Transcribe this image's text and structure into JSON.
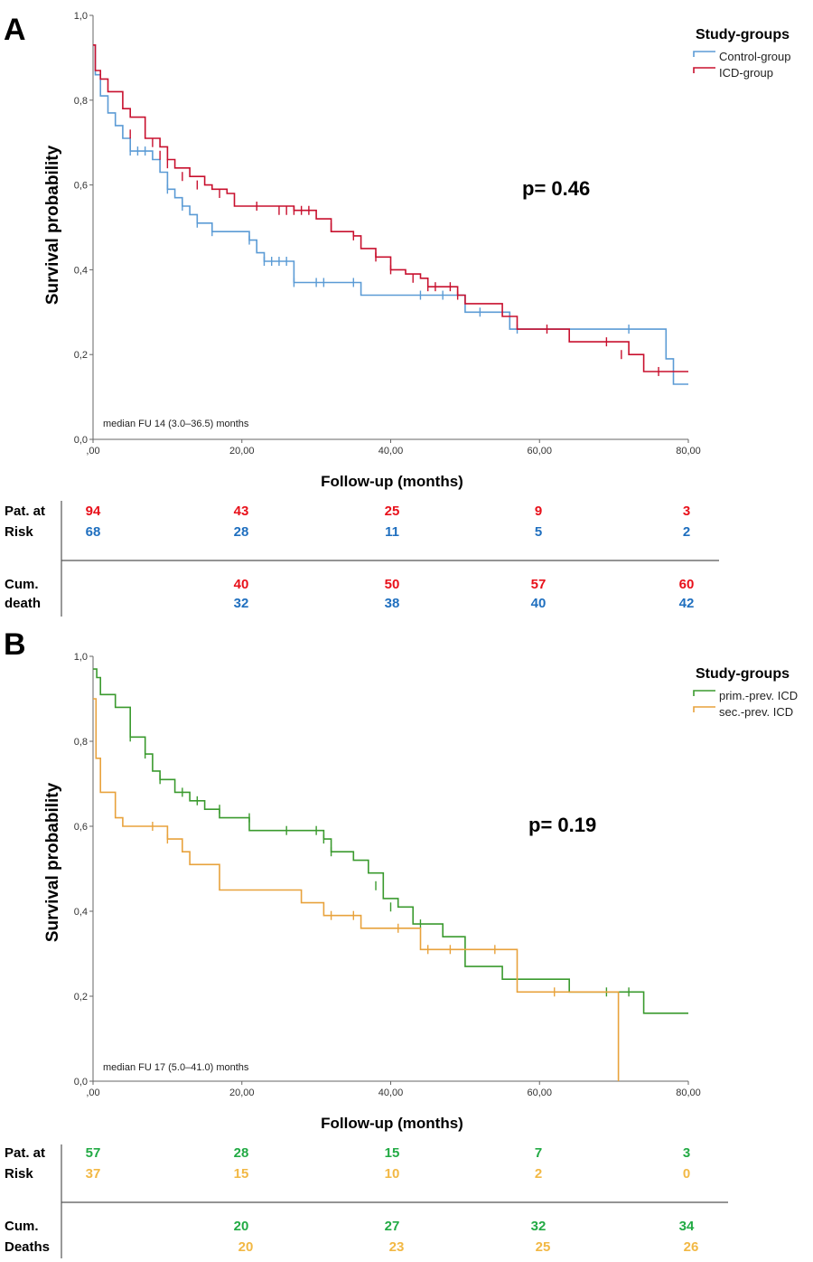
{
  "chart_data": [
    {
      "type": "line",
      "panel": "A",
      "step": true,
      "xlabel": "Follow-up (months)",
      "ylabel": "Survival probability",
      "xlim": [
        0,
        80
      ],
      "ylim": [
        0,
        1
      ],
      "xticks": [
        ",00",
        "20,00",
        "40,00",
        "60,00",
        "80,00"
      ],
      "yticks": [
        "0,0",
        "0,2",
        "0,4",
        "0,6",
        "0,8",
        "1,0"
      ],
      "legend_title": "Study-groups",
      "pvalue": "p= 0.46",
      "annotation": "median FU 14 (3.0–36.5) months",
      "series": [
        {
          "name": "Control-group",
          "color": "#5b9bd5",
          "x": [
            0,
            0.3,
            1,
            2,
            3,
            4,
            5,
            6,
            7,
            8,
            9,
            10,
            11,
            12,
            13,
            14,
            16,
            21,
            22,
            23,
            27,
            36,
            48,
            50,
            56,
            77,
            78,
            80
          ],
          "y": [
            0.93,
            0.86,
            0.81,
            0.77,
            0.74,
            0.71,
            0.68,
            0.68,
            0.68,
            0.66,
            0.63,
            0.59,
            0.57,
            0.55,
            0.53,
            0.51,
            0.49,
            0.47,
            0.44,
            0.42,
            0.37,
            0.34,
            0.34,
            0.3,
            0.26,
            0.19,
            0.13,
            0.13
          ],
          "censor_x": [
            5,
            6,
            7,
            10,
            12,
            14,
            16,
            21,
            23,
            24,
            25,
            26,
            27,
            30,
            31,
            35,
            44,
            47,
            52,
            57,
            72
          ],
          "censor_y": [
            0.68,
            0.68,
            0.68,
            0.59,
            0.55,
            0.51,
            0.49,
            0.47,
            0.42,
            0.42,
            0.42,
            0.42,
            0.37,
            0.37,
            0.37,
            0.37,
            0.34,
            0.34,
            0.3,
            0.26,
            0.26
          ]
        },
        {
          "name": "ICD-group",
          "color": "#c8102e",
          "x": [
            0,
            0.3,
            1,
            2,
            4,
            5,
            7,
            9,
            10,
            11,
            13,
            15,
            16,
            18,
            19,
            23,
            27,
            30,
            32,
            35,
            36,
            38,
            40,
            42,
            44,
            45,
            49,
            50,
            55,
            57,
            61,
            64,
            70,
            72,
            74,
            80
          ],
          "y": [
            0.93,
            0.87,
            0.85,
            0.82,
            0.78,
            0.76,
            0.71,
            0.69,
            0.66,
            0.64,
            0.62,
            0.6,
            0.59,
            0.58,
            0.55,
            0.55,
            0.54,
            0.52,
            0.49,
            0.48,
            0.45,
            0.43,
            0.4,
            0.39,
            0.38,
            0.36,
            0.34,
            0.32,
            0.29,
            0.26,
            0.26,
            0.23,
            0.23,
            0.2,
            0.16,
            0.16
          ],
          "censor_x": [
            5,
            8,
            9,
            10,
            12,
            14,
            17,
            22,
            25,
            26,
            27,
            28,
            29,
            32,
            35,
            38,
            40,
            43,
            45,
            46,
            48,
            49,
            61,
            69,
            71,
            76
          ],
          "censor_y": [
            0.72,
            0.7,
            0.67,
            0.65,
            0.62,
            0.6,
            0.58,
            0.55,
            0.54,
            0.54,
            0.54,
            0.54,
            0.54,
            0.5,
            0.48,
            0.43,
            0.4,
            0.38,
            0.36,
            0.36,
            0.36,
            0.34,
            0.26,
            0.23,
            0.2,
            0.16
          ]
        }
      ],
      "risk_table": {
        "row1_labels": [
          "Pat. at",
          "Risk"
        ],
        "row2_labels": [
          "Cum.",
          "death"
        ],
        "at_risk": [
          {
            "color": "#e8101a",
            "values": [
              "94",
              "43",
              "25",
              "9",
              "3"
            ]
          },
          {
            "color": "#1f6fbf",
            "values": [
              "68",
              "28",
              "11",
              "5",
              "2"
            ]
          }
        ],
        "cum_death": [
          {
            "color": "#e8101a",
            "values": [
              "",
              "40",
              "50",
              "57",
              "60"
            ]
          },
          {
            "color": "#1f6fbf",
            "values": [
              "",
              "32",
              "38",
              "40",
              "42"
            ]
          }
        ]
      }
    },
    {
      "type": "line",
      "panel": "B",
      "step": true,
      "xlabel": "Follow-up (months)",
      "ylabel": "Survival probability",
      "xlim": [
        0,
        80
      ],
      "ylim": [
        0,
        1
      ],
      "xticks": [
        ",00",
        "20,00",
        "40,00",
        "60,00",
        "80,00"
      ],
      "yticks": [
        "0,0",
        "0,2",
        "0,4",
        "0,6",
        "0,8",
        "1,0"
      ],
      "legend_title": "Study-groups",
      "pvalue": "p= 0.19",
      "annotation": "median FU 17 (5.0–41.0) months",
      "series": [
        {
          "name": "prim.-prev. ICD",
          "color": "#3a9a2e",
          "x": [
            0,
            0.5,
            1,
            3,
            5,
            7,
            8,
            9,
            11,
            13,
            15,
            17,
            21,
            31,
            32,
            35,
            37,
            39,
            41,
            43,
            47,
            50,
            55,
            64,
            74,
            80
          ],
          "y": [
            0.97,
            0.95,
            0.91,
            0.88,
            0.81,
            0.77,
            0.73,
            0.71,
            0.68,
            0.66,
            0.64,
            0.62,
            0.59,
            0.57,
            0.54,
            0.52,
            0.49,
            0.43,
            0.41,
            0.37,
            0.34,
            0.27,
            0.24,
            0.21,
            0.16,
            0.16
          ],
          "censor_x": [
            5,
            7,
            9,
            12,
            14,
            17,
            21,
            26,
            30,
            31,
            32,
            38,
            40,
            44,
            69,
            72
          ],
          "censor_y": [
            0.81,
            0.77,
            0.71,
            0.68,
            0.66,
            0.64,
            0.62,
            0.59,
            0.59,
            0.57,
            0.54,
            0.46,
            0.41,
            0.37,
            0.21,
            0.21
          ]
        },
        {
          "name": "sec.-prev. ICD",
          "color": "#e8a23c",
          "x": [
            0,
            0.4,
            1,
            3,
            4,
            10,
            12,
            13,
            17,
            28,
            31,
            36,
            44,
            48,
            57,
            70.5,
            70.6
          ],
          "y": [
            0.9,
            0.76,
            0.68,
            0.62,
            0.6,
            0.57,
            0.54,
            0.51,
            0.45,
            0.42,
            0.39,
            0.36,
            0.31,
            0.31,
            0.21,
            0.21,
            0.0
          ],
          "censor_x": [
            8,
            10,
            32,
            35,
            41,
            45,
            48,
            54,
            62
          ],
          "censor_y": [
            0.6,
            0.57,
            0.39,
            0.39,
            0.36,
            0.31,
            0.31,
            0.31,
            0.21
          ]
        }
      ],
      "risk_table": {
        "row1_labels": [
          "Pat. at",
          "Risk"
        ],
        "row2_labels": [
          "Cum.",
          "Deaths"
        ],
        "at_risk": [
          {
            "color": "#22aa44",
            "values": [
              "57",
              "28",
              "15",
              "7",
              "3"
            ]
          },
          {
            "color": "#f2b844",
            "values": [
              "37",
              "15",
              "10",
              "2",
              "0"
            ]
          }
        ],
        "cum_death": [
          {
            "color": "#22aa44",
            "values": [
              "",
              "20",
              "27",
              "32",
              "34"
            ]
          },
          {
            "color": "#f2b844",
            "values": [
              "",
              "20",
              "23",
              "25",
              "26"
            ]
          }
        ]
      }
    }
  ]
}
